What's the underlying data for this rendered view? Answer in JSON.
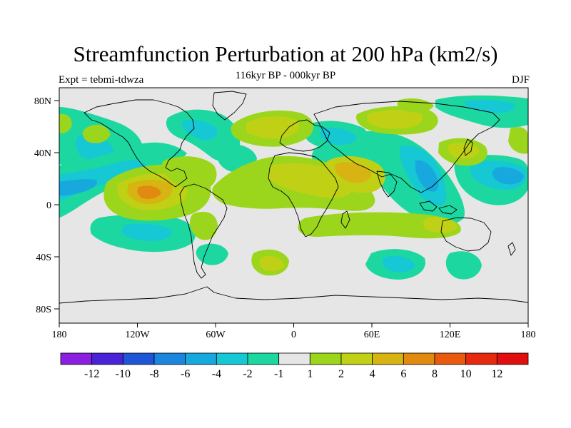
{
  "title": "Streamfunction Perturbation at 200 hPa (km2/s)",
  "subtitle_left": "Expt = tebmi-tdwza",
  "subtitle_center": "116kyr BP - 000kyr BP",
  "subtitle_right": "DJF",
  "y_ticks": [
    "80N",
    "40N",
    "0",
    "40S",
    "80S"
  ],
  "x_ticks": [
    "180",
    "120W",
    "60W",
    "0",
    "60E",
    "120E",
    "180"
  ],
  "colorbar": {
    "labels": [
      "-12",
      "-10",
      "-8",
      "-6",
      "-4",
      "-2",
      "-1",
      "1",
      "2",
      "4",
      "6",
      "8",
      "10",
      "12"
    ],
    "colors": [
      "#8a1fe0",
      "#4a22d8",
      "#1f56d8",
      "#1c86de",
      "#17a8de",
      "#16c8d4",
      "#1cd8a0",
      "#e6e6e6",
      "#9cd61c",
      "#c0d015",
      "#d8b412",
      "#e08a10",
      "#e85a10",
      "#e62a10",
      "#e00e0e"
    ]
  },
  "colors": {
    "land_outline": "#000000",
    "background": "#e6e6e6"
  }
}
